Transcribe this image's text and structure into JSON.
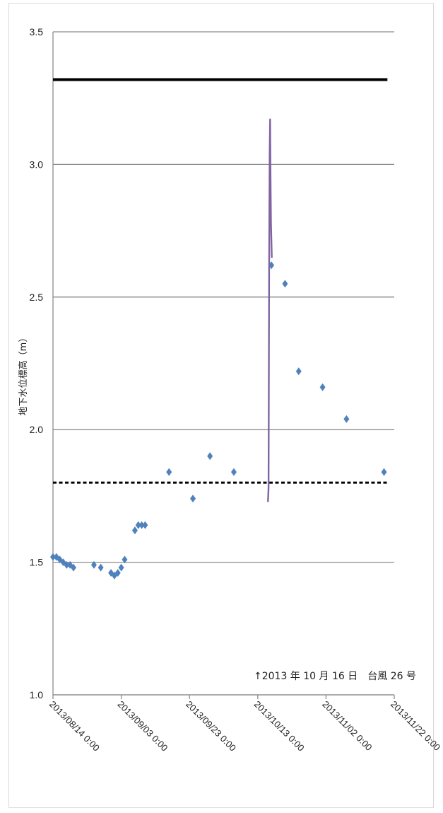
{
  "chart_data": {
    "type": "scatter",
    "ylabel": "地下水位標高（m）",
    "ylim": [
      1.0,
      3.5
    ],
    "y_ticks": [
      "1.0",
      "1.5",
      "2.0",
      "2.5",
      "3.0",
      "3.5"
    ],
    "grid": true,
    "x_ticks": [
      "2013/08/14 0:00",
      "2013/09/03 0:00",
      "2013/09/23 0:00",
      "2013/10/13 0:00",
      "2013/11/02 0:00",
      "2013/11/22 0:00"
    ],
    "xlim": [
      "2013-08-14",
      "2013-11-22"
    ],
    "annotation": "↑2013 年 10 月 16 日　台風 26 号",
    "reference_lines": [
      {
        "style": "solid",
        "color": "#000000",
        "y": 3.32,
        "x_start": "2013-08-14",
        "x_end": "2013-11-20"
      },
      {
        "style": "dotted",
        "color": "#000000",
        "y": 1.8,
        "x_start": "2013-08-14",
        "x_end": "2013-11-20"
      }
    ],
    "series": [
      {
        "type": "scatter",
        "color": "#4f81bd",
        "marker": "diamond",
        "points": [
          [
            "2013-08-14",
            1.52
          ],
          [
            "2013-08-15",
            1.52
          ],
          [
            "2013-08-16",
            1.51
          ],
          [
            "2013-08-17",
            1.5
          ],
          [
            "2013-08-18",
            1.49
          ],
          [
            "2013-08-19",
            1.49
          ],
          [
            "2013-08-20",
            1.48
          ],
          [
            "2013-08-26",
            1.49
          ],
          [
            "2013-08-28",
            1.48
          ],
          [
            "2013-08-31",
            1.46
          ],
          [
            "2013-09-01",
            1.45
          ],
          [
            "2013-09-02",
            1.46
          ],
          [
            "2013-09-03",
            1.48
          ],
          [
            "2013-09-04",
            1.51
          ],
          [
            "2013-09-07",
            1.62
          ],
          [
            "2013-09-08",
            1.64
          ],
          [
            "2013-09-09",
            1.64
          ],
          [
            "2013-09-10",
            1.64
          ],
          [
            "2013-09-17",
            1.84
          ],
          [
            "2013-09-24",
            1.74
          ],
          [
            "2013-09-29",
            1.9
          ],
          [
            "2013-10-06",
            1.84
          ],
          [
            "2013-10-17",
            2.62
          ],
          [
            "2013-10-21",
            2.55
          ],
          [
            "2013-10-25",
            2.22
          ],
          [
            "2013-11-01",
            2.16
          ],
          [
            "2013-11-08",
            2.04
          ],
          [
            "2013-11-19",
            1.84
          ]
        ]
      },
      {
        "type": "line",
        "color": "#8064a2",
        "points": [
          [
            "2013-10-16 00:00",
            1.73
          ],
          [
            "2013-10-16 04:00",
            1.78
          ],
          [
            "2013-10-16 08:00",
            2.6
          ],
          [
            "2013-10-16 12:00",
            3.05
          ],
          [
            "2013-10-16 15:00",
            3.17
          ],
          [
            "2013-10-16 18:00",
            2.95
          ],
          [
            "2013-10-16 21:00",
            2.78
          ],
          [
            "2013-10-17 03:00",
            2.65
          ]
        ]
      }
    ]
  }
}
